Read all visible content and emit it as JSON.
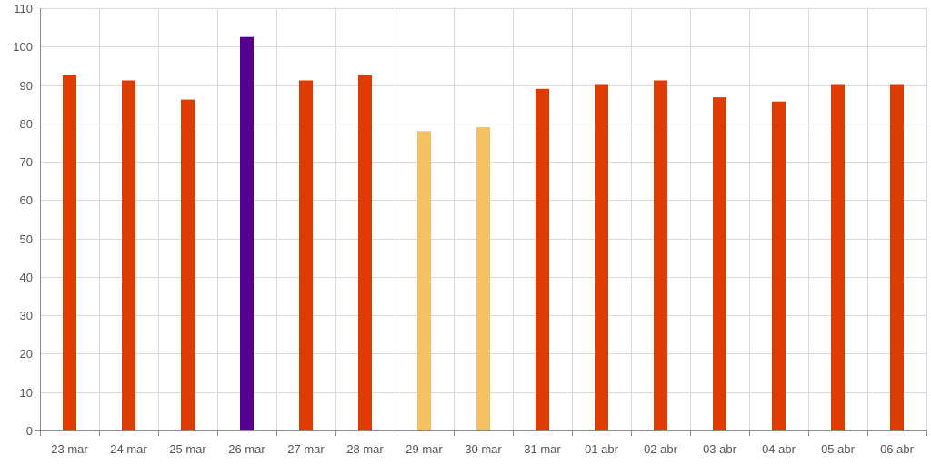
{
  "chart_data": {
    "type": "bar",
    "title": "",
    "xlabel": "",
    "ylabel": "",
    "ylim": [
      0,
      110
    ],
    "y_ticks": [
      "0",
      "10",
      "20",
      "30",
      "40",
      "50",
      "60",
      "70",
      "80",
      "90",
      "100",
      "110"
    ],
    "grid": true,
    "legend": "none",
    "categories": [
      "23 mar",
      "24 mar",
      "25 mar",
      "26 mar",
      "27 mar",
      "28 mar",
      "29 mar",
      "30 mar",
      "31 mar",
      "01 abr",
      "02 abr",
      "03 abr",
      "04 abr",
      "05 abr",
      "06 abr"
    ],
    "values": [
      92.5,
      91.2,
      86.2,
      102.5,
      91.2,
      92.5,
      78,
      79,
      89,
      90,
      91.2,
      86.8,
      85.7,
      90,
      90
    ],
    "bar_colors": [
      "#dd3b00",
      "#dd3b00",
      "#dd3b00",
      "#55008f",
      "#dd3b00",
      "#dd3b00",
      "#f5c163",
      "#f5c163",
      "#dd3b00",
      "#dd3b00",
      "#dd3b00",
      "#dd3b00",
      "#dd3b00",
      "#dd3b00",
      "#dd3b00"
    ]
  }
}
